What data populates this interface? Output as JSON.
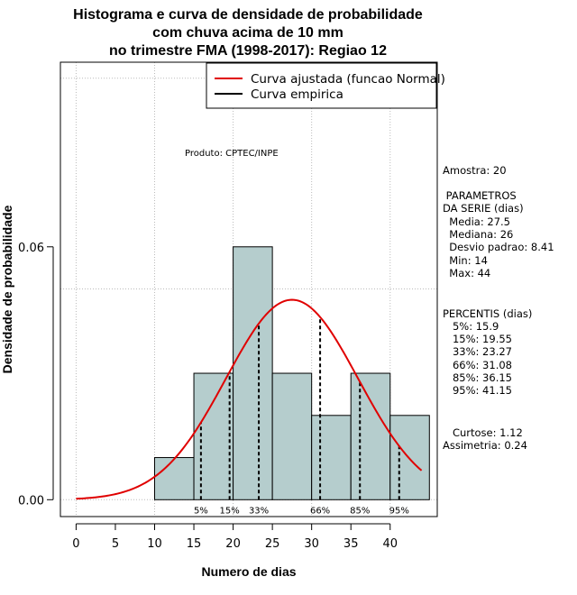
{
  "chart_data": {
    "type": "histogram",
    "title_lines": [
      "Histograma e curva de densidade de probabilidade",
      "com chuva acima de 10 mm",
      "no trimestre FMA (1998-2017): Regiao 12"
    ],
    "xlabel": "Numero de dias",
    "ylabel": "Densidade de probabilidade",
    "xlim": [
      -2,
      46
    ],
    "ylim": [
      -0.004,
      0.1038
    ],
    "x_ticks": [
      0,
      5,
      10,
      15,
      20,
      25,
      30,
      35,
      40
    ],
    "x_tick_labels": [
      "0",
      "5",
      "10",
      "15",
      "20",
      "25",
      "30",
      "35",
      "40"
    ],
    "y_ticks": [
      0.0,
      0.06
    ],
    "y_tick_labels": [
      "0.00",
      "0.06"
    ],
    "bins": [
      {
        "start": 10,
        "end": 15,
        "density": 0.01
      },
      {
        "start": 15,
        "end": 20,
        "density": 0.03
      },
      {
        "start": 20,
        "end": 25,
        "density": 0.06
      },
      {
        "start": 25,
        "end": 30,
        "density": 0.03
      },
      {
        "start": 30,
        "end": 35,
        "density": 0.02
      },
      {
        "start": 35,
        "end": 40,
        "density": 0.03
      },
      {
        "start": 40,
        "end": 45,
        "density": 0.02
      }
    ],
    "normal_fit": {
      "mean": 27.5,
      "sd": 8.41,
      "x_from": 0,
      "x_to": 44
    },
    "percentile_markers": [
      {
        "label": "5%",
        "value": 15.9
      },
      {
        "label": "15%",
        "value": 19.55
      },
      {
        "label": "33%",
        "value": 23.27
      },
      {
        "label": "66%",
        "value": 31.08
      },
      {
        "label": "85%",
        "value": 36.15
      },
      {
        "label": "95%",
        "value": 41.15
      }
    ],
    "gridlines_x": [
      0,
      10,
      20,
      30,
      40
    ],
    "gridlines_y": [
      0.0,
      0.05,
      0.1
    ],
    "legend": {
      "position": "top-right",
      "items": [
        {
          "label": "Curva ajustada (funcao Normal)",
          "color": "#e00000"
        },
        {
          "label": "Curva empirica",
          "color": "#000000"
        }
      ]
    },
    "product_label": "Produto: CPTEC/INPE"
  },
  "side_panel": {
    "sample": "Amostra: 20",
    "params_title_1": " PARAMETROS",
    "params_title_2": "DA SERIE (dias)",
    "params": [
      "  Media: 27.5",
      "  Mediana: 26",
      "  Desvio padrao: 8.41",
      "  Min: 14",
      "  Max: 44"
    ],
    "percentis_title": "PERCENTIS (dias)",
    "percentis": [
      "   5%: 15.9",
      "   15%: 19.55",
      "   33%: 23.27",
      "   66%: 31.08",
      "   85%: 36.15",
      "   95%: 41.15"
    ],
    "kurtosis": "   Curtose: 1.12",
    "skewness": "Assimetria: 0.24"
  },
  "colors": {
    "bar_fill": "#b5cdcd",
    "curve": "#e00000",
    "grid": "#bbbbbb"
  }
}
